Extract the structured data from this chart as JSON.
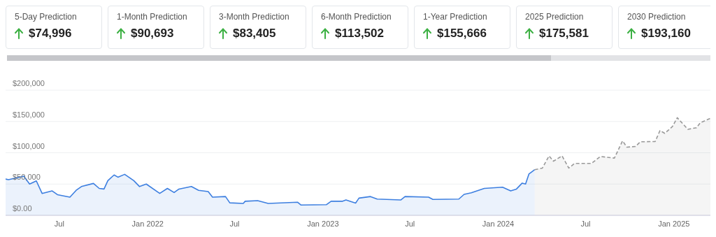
{
  "chart_data": [
    {
      "type": "other",
      "annotations": [
        "5-Day Prediction",
        "$74,996",
        "1-Month Prediction",
        "$90,693",
        "3-Month Prediction",
        "$83,405",
        "6-Month Prediction",
        "$113,502",
        "1-Year Prediction",
        "$155,666",
        "2025 Prediction",
        "$175,581",
        "2030 Prediction",
        "$193,160"
      ]
    },
    {
      "type": "area",
      "grid": "y",
      "xlim": [
        "2021-03-11",
        "2025-03-18"
      ],
      "ylim": [
        0,
        200000
      ],
      "xticks": [
        {
          "value": "2021-07-01",
          "label": "Jul"
        },
        {
          "value": "2022-01-01",
          "label": "Jan 2022"
        },
        {
          "value": "2022-07-01",
          "label": "Jul"
        },
        {
          "value": "2023-01-01",
          "label": "Jan 2023"
        },
        {
          "value": "2023-07-01",
          "label": "Jul"
        },
        {
          "value": "2024-01-01",
          "label": "Jan 2024"
        },
        {
          "value": "2024-07-01",
          "label": "Jul"
        },
        {
          "value": "2025-01-01",
          "label": "Jan 2025"
        }
      ],
      "yticks": [
        {
          "value": 0,
          "label": "$0.00"
        },
        {
          "value": 50000,
          "label": "$50,000"
        },
        {
          "value": 100000,
          "label": "$100,000"
        },
        {
          "value": 150000,
          "label": "$150,000"
        },
        {
          "value": 200000,
          "label": "$200,000"
        }
      ],
      "series": [
        {
          "color": "#3d7fe0",
          "line_style": "solid",
          "x": [
            "2021-03-11",
            "2021-03-17",
            "2021-04-18",
            "2021-04-30",
            "2021-05-14",
            "2021-05-26",
            "2021-06-16",
            "2021-06-27",
            "2021-07-23",
            "2021-08-05",
            "2021-08-16",
            "2021-09-10",
            "2021-09-22",
            "2021-10-02",
            "2021-10-10",
            "2021-10-23",
            "2021-10-31",
            "2021-11-14",
            "2021-12-03",
            "2021-12-15",
            "2021-12-29",
            "2022-01-26",
            "2022-02-11",
            "2022-02-25",
            "2022-03-07",
            "2022-04-02",
            "2022-04-17",
            "2022-05-07",
            "2022-05-16",
            "2022-06-12",
            "2022-06-21",
            "2022-07-19",
            "2022-07-23",
            "2022-08-18",
            "2022-09-09",
            "2022-11-09",
            "2022-11-16",
            "2023-01-08",
            "2023-01-18",
            "2023-02-11",
            "2023-02-18",
            "2023-03-10",
            "2023-03-17",
            "2023-04-10",
            "2023-04-24",
            "2023-06-12",
            "2023-06-21",
            "2023-08-09",
            "2023-08-18",
            "2023-10-11",
            "2023-10-22",
            "2023-11-06",
            "2023-12-03",
            "2024-01-10",
            "2024-01-27",
            "2024-02-08",
            "2024-02-20",
            "2024-02-27",
            "2024-03-05",
            "2024-03-17"
          ],
          "values": [
            58000,
            57000,
            62500,
            50000,
            55000,
            35000,
            39000,
            33000,
            29000,
            40000,
            46000,
            51000,
            43000,
            42000,
            55500,
            64500,
            61000,
            65500,
            55500,
            46000,
            50000,
            35000,
            43000,
            36500,
            42000,
            46000,
            40000,
            38000,
            29000,
            30000,
            20000,
            19000,
            22500,
            23500,
            19000,
            21000,
            16500,
            17000,
            22500,
            22500,
            24500,
            19500,
            27500,
            30000,
            26000,
            24500,
            30000,
            29000,
            25500,
            26000,
            33500,
            36000,
            43000,
            45000,
            39000,
            42000,
            51500,
            50000,
            66000,
            73000
          ]
        },
        {
          "color": "#999999",
          "line_style": "dashed",
          "x": [
            "2024-03-17",
            "2024-04-02",
            "2024-04-16",
            "2024-04-25",
            "2024-05-13",
            "2024-05-27",
            "2024-06-08",
            "2024-07-13",
            "2024-08-01",
            "2024-08-30",
            "2024-09-16",
            "2024-09-25",
            "2024-10-13",
            "2024-10-23",
            "2024-11-23",
            "2024-12-03",
            "2024-12-13",
            "2024-12-29",
            "2025-01-08",
            "2025-01-30",
            "2025-02-17",
            "2025-02-25",
            "2025-03-18"
          ],
          "values": [
            73000,
            75500,
            95000,
            86500,
            95000,
            75500,
            83000,
            83000,
            94000,
            91500,
            119000,
            109000,
            110000,
            117500,
            118000,
            135500,
            131000,
            142000,
            156000,
            137500,
            140000,
            148000,
            155000
          ]
        }
      ]
    }
  ]
}
